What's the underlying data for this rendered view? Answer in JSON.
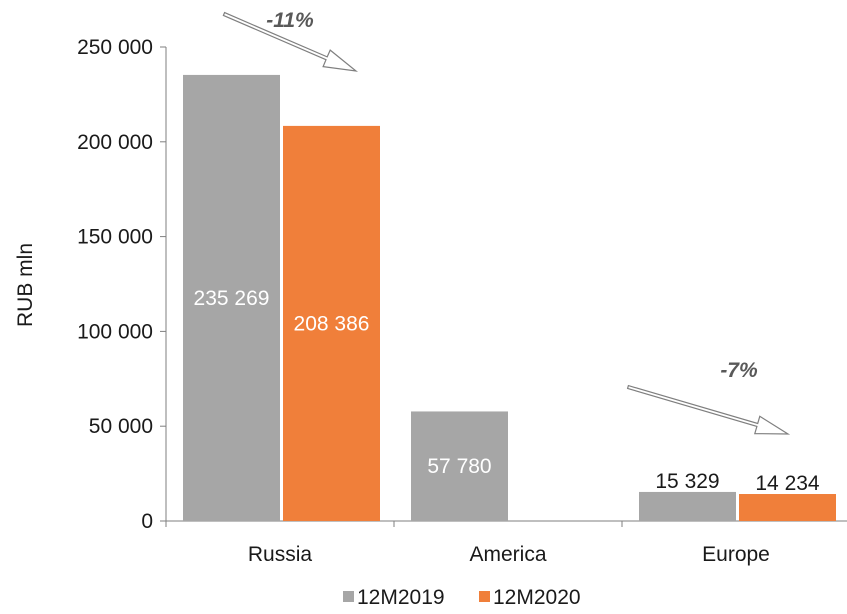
{
  "chart_data": {
    "type": "bar",
    "categories": [
      "Russia",
      "America",
      "Europe"
    ],
    "series": [
      {
        "name": "12M2019",
        "color": "#a6a6a6",
        "values": [
          235269,
          57780,
          15329
        ],
        "labels": [
          "235 269",
          "57 780",
          "15 329"
        ]
      },
      {
        "name": "12M2020",
        "color": "#f07f3a",
        "values": [
          208386,
          null,
          14234
        ],
        "labels": [
          "208 386",
          "",
          "14 234"
        ]
      }
    ],
    "ylabel": "RUB mln",
    "ylim": [
      0,
      250000
    ],
    "yticks": [
      0,
      50000,
      100000,
      150000,
      200000,
      250000
    ],
    "ytick_labels": [
      "0",
      "50 000",
      "100 000",
      "150 000",
      "200 000",
      "250 000"
    ],
    "annotations": [
      {
        "text": "-11%",
        "category": "Russia"
      },
      {
        "text": "-7%",
        "category": "Europe"
      }
    ],
    "legend_position": "bottom",
    "grid": false
  }
}
